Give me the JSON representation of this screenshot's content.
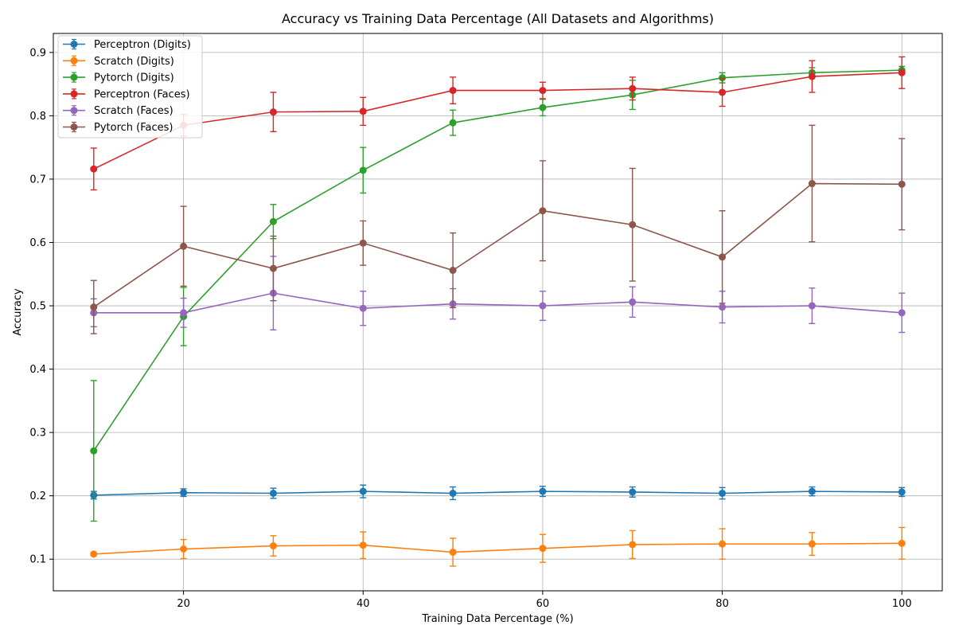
{
  "chart_data": {
    "type": "line",
    "title": "Accuracy vs Training Data Percentage (All Datasets and Algorithms)",
    "xlabel": "Training Data Percentage (%)",
    "ylabel": "Accuracy",
    "xlim": [
      5.5,
      104.5
    ],
    "ylim": [
      0.05,
      0.93
    ],
    "xticks": [
      "20",
      "40",
      "60",
      "80",
      "100"
    ],
    "yticks": [
      "0.1",
      "0.2",
      "0.3",
      "0.4",
      "0.5",
      "0.6",
      "0.7",
      "0.8",
      "0.9"
    ],
    "grid": true,
    "legend_position": "top-left",
    "x": [
      10,
      20,
      30,
      40,
      50,
      60,
      70,
      80,
      90,
      100
    ],
    "series": [
      {
        "name": "Perceptron (Digits)",
        "color": "#1f77b4",
        "values": [
          0.201,
          0.205,
          0.204,
          0.207,
          0.204,
          0.207,
          0.206,
          0.204,
          0.207,
          0.206
        ],
        "errors": [
          0.006,
          0.006,
          0.008,
          0.01,
          0.01,
          0.008,
          0.008,
          0.009,
          0.007,
          0.007
        ]
      },
      {
        "name": "Scratch (Digits)",
        "color": "#ff7f0e",
        "values": [
          0.108,
          0.116,
          0.121,
          0.122,
          0.111,
          0.117,
          0.123,
          0.124,
          0.124,
          0.125
        ],
        "errors": [
          0.002,
          0.015,
          0.016,
          0.021,
          0.022,
          0.022,
          0.022,
          0.024,
          0.018,
          0.025
        ]
      },
      {
        "name": "Pytorch (Digits)",
        "color": "#2ca02c",
        "values": [
          0.271,
          0.483,
          0.633,
          0.714,
          0.789,
          0.813,
          0.833,
          0.86,
          0.868,
          0.872
        ],
        "errors": [
          0.111,
          0.046,
          0.027,
          0.036,
          0.02,
          0.013,
          0.023,
          0.008,
          0.008,
          0.006
        ]
      },
      {
        "name": "Perceptron (Faces)",
        "color": "#d62728",
        "values": [
          0.716,
          0.785,
          0.806,
          0.807,
          0.84,
          0.84,
          0.843,
          0.837,
          0.862,
          0.868
        ],
        "errors": [
          0.033,
          0.017,
          0.031,
          0.022,
          0.021,
          0.013,
          0.018,
          0.022,
          0.025,
          0.025
        ]
      },
      {
        "name": "Scratch (Faces)",
        "color": "#9467bd",
        "values": [
          0.489,
          0.489,
          0.52,
          0.496,
          0.503,
          0.5,
          0.506,
          0.498,
          0.5,
          0.489
        ],
        "errors": [
          0.022,
          0.023,
          0.058,
          0.027,
          0.024,
          0.023,
          0.024,
          0.025,
          0.028,
          0.031
        ]
      },
      {
        "name": "Pytorch (Faces)",
        "color": "#8c564b",
        "values": [
          0.498,
          0.594,
          0.559,
          0.599,
          0.556,
          0.65,
          0.628,
          0.577,
          0.693,
          0.692
        ],
        "errors": [
          0.042,
          0.063,
          0.051,
          0.035,
          0.059,
          0.079,
          0.089,
          0.073,
          0.092,
          0.072
        ]
      }
    ]
  }
}
